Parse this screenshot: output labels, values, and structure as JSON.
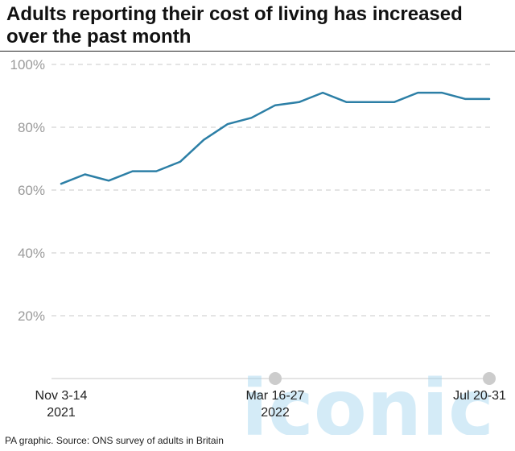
{
  "title": "Adults reporting their cost of living has increased over the past month",
  "source": "PA graphic. Source: ONS survey of adults in Britain",
  "watermark": "iconic",
  "colors": {
    "line": "#2c7fa6",
    "grid": "#c8c8c8",
    "tick_text": "#9a9a9a",
    "label_text": "#222222",
    "marker": "#cccccc",
    "watermark": "#9fd3ee"
  },
  "chart_data": {
    "type": "line",
    "title": "Adults reporting their cost of living has increased over the past month",
    "xlabel": "",
    "ylabel": "",
    "ylim": [
      0,
      100
    ],
    "yticks": [
      20,
      40,
      60,
      80,
      100
    ],
    "ytick_labels": [
      "20%",
      "40%",
      "60%",
      "80%",
      "100%"
    ],
    "grid": true,
    "x_labels": [
      {
        "index": 0,
        "lines": [
          "Nov 3-14",
          "2021"
        ]
      },
      {
        "index": 9,
        "lines": [
          "Mar 16-27",
          "2022"
        ]
      },
      {
        "index": 18,
        "lines": [
          "Jul 20-31"
        ]
      }
    ],
    "markers_at": [
      9,
      18
    ],
    "series": [
      {
        "values": [
          62,
          65,
          63,
          66,
          66,
          69,
          76,
          81,
          83,
          87,
          88,
          91,
          88,
          88,
          88,
          91,
          91,
          89,
          89
        ]
      }
    ]
  }
}
